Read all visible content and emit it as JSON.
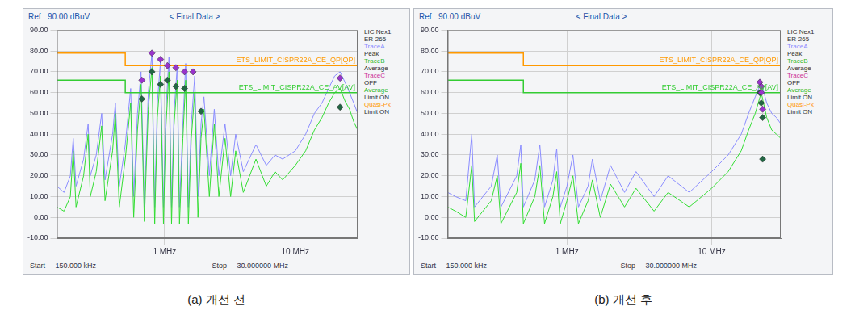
{
  "chart_data": [
    {
      "type": "line",
      "caption": "(a) 개선 전",
      "ref": "Ref",
      "ref_level": "90.00 dBuV",
      "title": "< Final Data >",
      "start_text": "Start",
      "start_value": "150.000 kHz",
      "stop_text": "Stop",
      "stop_value": "30.000000 MHz",
      "log": "x",
      "grid": true,
      "xlim": [
        0.15,
        30
      ],
      "xticks": [
        {
          "value": 1,
          "label": "1 MHz"
        },
        {
          "value": 10,
          "label": "10 MHz"
        }
      ],
      "ylim": [
        -10,
        90
      ],
      "yticks": [
        {
          "value": -10,
          "label": "-10.00"
        },
        {
          "value": 0,
          "label": "0.00"
        },
        {
          "value": 10,
          "label": "10.00"
        },
        {
          "value": 20,
          "label": "20.00"
        },
        {
          "value": 30,
          "label": "30.00"
        },
        {
          "value": 40,
          "label": "40.00"
        },
        {
          "value": 50,
          "label": "50.00"
        },
        {
          "value": 60,
          "label": "60.00"
        },
        {
          "value": 70,
          "label": "70.00"
        },
        {
          "value": 80,
          "label": "80.00"
        },
        {
          "value": 90,
          "label": "90.00"
        }
      ],
      "side_legend": [
        {
          "text": "LIC Nex1"
        },
        {
          "text": "ER-265"
        },
        {
          "text": "TraceA",
          "color": "#8a8cff"
        },
        {
          "text": "Peak"
        },
        {
          "text": "TraceB",
          "color": "#33bb33"
        },
        {
          "text": "Average"
        },
        {
          "text": "TraceC",
          "color": "#cc3399"
        },
        {
          "text": "OFF"
        },
        {
          "text": "Average",
          "color": "#33bb33"
        },
        {
          "text": "Limit ON"
        },
        {
          "text": "Quasi-Pk",
          "color": "#ff9900"
        },
        {
          "text": "Limit ON"
        }
      ],
      "series": [
        {
          "type": "line",
          "color": "#8a8cff",
          "marker": "none",
          "line_style": "solid",
          "x": [
            0.15,
            0.17,
            0.19,
            0.2,
            0.21,
            0.24,
            0.26,
            0.27,
            0.3,
            0.33,
            0.35,
            0.4,
            0.42,
            0.45,
            0.5,
            0.55,
            0.58,
            0.62,
            0.66,
            0.7,
            0.75,
            0.8,
            0.84,
            0.88,
            0.93,
            0.98,
            1.02,
            1.08,
            1.13,
            1.18,
            1.25,
            1.3,
            1.38,
            1.45,
            1.52,
            1.6,
            1.7,
            1.8,
            1.9,
            2.0,
            2.2,
            2.4,
            2.6,
            2.9,
            3.2,
            3.5,
            4,
            5,
            6,
            7,
            8,
            10,
            12,
            14,
            16,
            18,
            20,
            22,
            24,
            26,
            28,
            30
          ],
          "values": [
            15,
            12,
            20,
            38,
            15,
            28,
            45,
            20,
            30,
            50,
            18,
            40,
            55,
            15,
            35,
            62,
            10,
            50,
            70,
            5,
            60,
            79,
            5,
            55,
            75,
            5,
            50,
            77,
            5,
            50,
            73,
            5,
            45,
            74,
            5,
            45,
            68,
            10,
            45,
            58,
            20,
            52,
            20,
            45,
            20,
            40,
            22,
            35,
            25,
            30,
            28,
            32,
            40,
            50,
            55,
            62,
            68,
            70,
            65,
            60,
            55,
            50
          ]
        },
        {
          "type": "line",
          "color": "#33dd33",
          "marker": "none",
          "line_style": "solid",
          "x": [
            0.15,
            0.17,
            0.19,
            0.2,
            0.21,
            0.24,
            0.26,
            0.27,
            0.3,
            0.33,
            0.35,
            0.4,
            0.42,
            0.45,
            0.5,
            0.55,
            0.58,
            0.62,
            0.66,
            0.7,
            0.75,
            0.8,
            0.84,
            0.88,
            0.93,
            0.98,
            1.02,
            1.08,
            1.13,
            1.18,
            1.25,
            1.3,
            1.38,
            1.45,
            1.52,
            1.6,
            1.7,
            1.8,
            1.9,
            2.0,
            2.2,
            2.4,
            2.6,
            2.9,
            3.2,
            3.5,
            4,
            5,
            6,
            7,
            8,
            10,
            12,
            14,
            16,
            18,
            20,
            22,
            24,
            26,
            28,
            30
          ],
          "values": [
            5,
            3,
            10,
            32,
            5,
            20,
            40,
            10,
            22,
            44,
            8,
            32,
            50,
            5,
            28,
            55,
            0,
            42,
            64,
            -2,
            52,
            72,
            -3,
            48,
            68,
            -3,
            42,
            70,
            -3,
            44,
            66,
            -3,
            38,
            66,
            -3,
            38,
            60,
            0,
            38,
            52,
            10,
            45,
            10,
            38,
            10,
            32,
            12,
            28,
            15,
            22,
            18,
            25,
            32,
            42,
            48,
            55,
            60,
            62,
            56,
            52,
            46,
            42
          ]
        },
        {
          "type": "line",
          "name": "ETS_LIMIT_CISPR22A_CE_QP[QP]",
          "color": "#ff9900",
          "marker": "none",
          "line_style": "solid",
          "x": [
            0.15,
            0.5,
            0.5,
            30
          ],
          "values": [
            79,
            79,
            73,
            73
          ]
        },
        {
          "type": "line",
          "name": "ETS_LIMIT_CISPR22A_CE_AV[AV]",
          "color": "#33cc33",
          "marker": "none",
          "line_style": "solid",
          "x": [
            0.15,
            0.5,
            0.5,
            30
          ],
          "values": [
            66,
            66,
            60,
            60
          ]
        },
        {
          "type": "scatter",
          "color": "#9933cc",
          "marker": "diamond",
          "x": [
            0.67,
            0.8,
            0.93,
            1.05,
            1.22,
            1.42,
            1.65,
            22
          ],
          "values": [
            66,
            79,
            76,
            73,
            72,
            70,
            70,
            67
          ]
        },
        {
          "type": "scatter",
          "color": "#226644",
          "marker": "diamond",
          "x": [
            0.67,
            0.8,
            0.93,
            1.05,
            1.22,
            1.42,
            1.9,
            22
          ],
          "values": [
            57,
            70,
            64,
            66,
            63,
            62,
            51,
            53
          ]
        }
      ]
    },
    {
      "type": "line",
      "caption": "(b) 개선 후",
      "ref": "Ref",
      "ref_level": "90.00 dBuV",
      "title": "< Final Data >",
      "start_text": "Start",
      "start_value": "150.000 kHz",
      "stop_text": "Stop",
      "stop_value": "30.000000 MHz",
      "log": "x",
      "grid": true,
      "xlim": [
        0.15,
        30
      ],
      "xticks": [
        {
          "value": 1,
          "label": "1 MHz"
        },
        {
          "value": 10,
          "label": "10 MHz"
        }
      ],
      "ylim": [
        -10,
        90
      ],
      "yticks": [
        {
          "value": -10,
          "label": "-10.00"
        },
        {
          "value": 0,
          "label": "0.00"
        },
        {
          "value": 10,
          "label": "10.00"
        },
        {
          "value": 20,
          "label": "20.00"
        },
        {
          "value": 30,
          "label": "30.00"
        },
        {
          "value": 40,
          "label": "40.00"
        },
        {
          "value": 50,
          "label": "50.00"
        },
        {
          "value": 60,
          "label": "60.00"
        },
        {
          "value": 70,
          "label": "70.00"
        },
        {
          "value": 80,
          "label": "80.00"
        },
        {
          "value": 90,
          "label": "90.00"
        }
      ],
      "side_legend": [
        {
          "text": "LIC Nex1"
        },
        {
          "text": "ER-265"
        },
        {
          "text": "TraceA",
          "color": "#8a8cff"
        },
        {
          "text": "Peak"
        },
        {
          "text": "TraceB",
          "color": "#33bb33"
        },
        {
          "text": "Average"
        },
        {
          "text": "TraceC",
          "color": "#cc3399"
        },
        {
          "text": "OFF"
        },
        {
          "text": "Average",
          "color": "#33bb33"
        },
        {
          "text": "Limit ON"
        },
        {
          "text": "Quasi-Pk",
          "color": "#ff9900"
        },
        {
          "text": "Limit ON"
        }
      ],
      "series": [
        {
          "type": "line",
          "color": "#8a8cff",
          "marker": "none",
          "line_style": "solid",
          "x": [
            0.15,
            0.17,
            0.2,
            0.22,
            0.23,
            0.3,
            0.33,
            0.35,
            0.45,
            0.48,
            0.5,
            0.6,
            0.65,
            0.7,
            0.8,
            0.85,
            0.9,
            1.0,
            1.1,
            1.2,
            1.4,
            1.5,
            1.7,
            2,
            2.5,
            3,
            4,
            5,
            7,
            10,
            13,
            16,
            18,
            20,
            22,
            24,
            26,
            28,
            30
          ],
          "values": [
            12,
            10,
            8,
            40,
            5,
            15,
            30,
            5,
            20,
            35,
            5,
            18,
            35,
            5,
            18,
            33,
            5,
            15,
            30,
            5,
            15,
            28,
            8,
            25,
            12,
            22,
            10,
            20,
            12,
            22,
            30,
            40,
            50,
            58,
            65,
            55,
            50,
            48,
            45
          ]
        },
        {
          "type": "line",
          "color": "#33dd33",
          "marker": "none",
          "line_style": "solid",
          "x": [
            0.15,
            0.17,
            0.2,
            0.22,
            0.23,
            0.3,
            0.33,
            0.35,
            0.45,
            0.48,
            0.5,
            0.6,
            0.65,
            0.7,
            0.8,
            0.85,
            0.9,
            1.0,
            1.1,
            1.2,
            1.4,
            1.5,
            1.7,
            2,
            2.5,
            3,
            4,
            5,
            7,
            10,
            13,
            16,
            18,
            20,
            22,
            24,
            26,
            28,
            30
          ],
          "values": [
            5,
            3,
            0,
            25,
            -2,
            8,
            20,
            -3,
            12,
            26,
            -3,
            10,
            25,
            -3,
            10,
            22,
            -3,
            8,
            20,
            -3,
            8,
            18,
            0,
            16,
            5,
            14,
            3,
            12,
            5,
            14,
            22,
            32,
            42,
            50,
            60,
            48,
            42,
            40,
            38
          ]
        },
        {
          "type": "line",
          "name": "ETS_LIMIT_CISPR22A_CE_QP[QP]",
          "color": "#ff9900",
          "marker": "none",
          "line_style": "solid",
          "x": [
            0.15,
            0.5,
            0.5,
            30
          ],
          "values": [
            79,
            79,
            73,
            73
          ]
        },
        {
          "type": "line",
          "name": "ETS_LIMIT_CISPR22A_CE_AV[AV]",
          "color": "#33cc33",
          "marker": "none",
          "line_style": "solid",
          "x": [
            0.15,
            0.5,
            0.5,
            30
          ],
          "values": [
            66,
            66,
            60,
            60
          ]
        },
        {
          "type": "scatter",
          "color": "#9933cc",
          "marker": "diamond",
          "x": [
            21.5,
            22,
            22,
            22.5
          ],
          "values": [
            65,
            63,
            60,
            52
          ]
        },
        {
          "type": "scatter",
          "color": "#226644",
          "marker": "diamond",
          "x": [
            21.5,
            22,
            22.5,
            22.5
          ],
          "values": [
            60,
            55,
            48,
            28
          ]
        }
      ]
    }
  ]
}
